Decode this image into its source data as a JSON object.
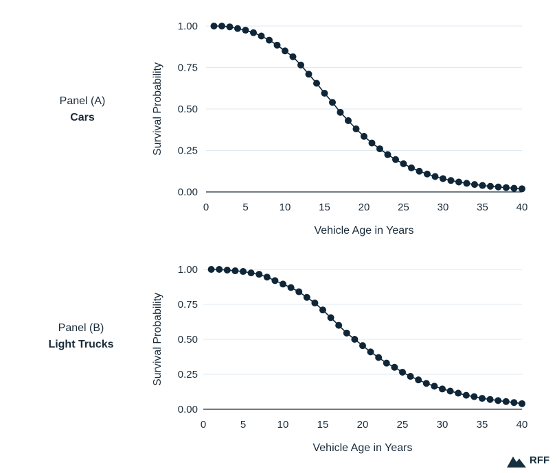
{
  "panels": [
    {
      "label_top": "Panel (A)",
      "label_bottom": "Cars"
    },
    {
      "label_top": "Panel (B)",
      "label_bottom": "Light Trucks"
    }
  ],
  "logo": {
    "text": "RFF",
    "icon": "mountain-icon"
  },
  "colors": {
    "marker": "#0f2638",
    "line": "#0f2638",
    "grid": "#dfe9f0",
    "axis": "#1a2b3a"
  },
  "chart_data": [
    {
      "type": "line",
      "title": "",
      "xlabel": "Vehicle Age in Years",
      "ylabel": "Survival Probability",
      "xlim": [
        0,
        40
      ],
      "ylim": [
        0,
        1
      ],
      "xticks": [
        "0",
        "5",
        "10",
        "15",
        "20",
        "25",
        "30",
        "35",
        "40"
      ],
      "yticks": [
        "0.00",
        "0.25",
        "0.50",
        "0.75",
        "1.00"
      ],
      "grid": true,
      "series": [
        {
          "x": [
            1,
            2,
            3,
            4,
            5,
            6,
            7,
            8,
            9,
            10,
            11,
            12,
            13,
            14,
            15,
            16,
            17,
            18,
            19,
            20,
            21,
            22,
            23,
            24,
            25,
            26,
            27,
            28,
            29,
            30,
            31,
            32,
            33,
            34,
            35,
            36,
            37,
            38,
            39,
            40
          ],
          "y": [
            1.0,
            1.0,
            0.995,
            0.985,
            0.975,
            0.96,
            0.94,
            0.915,
            0.885,
            0.85,
            0.815,
            0.765,
            0.71,
            0.655,
            0.595,
            0.54,
            0.48,
            0.43,
            0.38,
            0.335,
            0.295,
            0.26,
            0.225,
            0.195,
            0.17,
            0.145,
            0.125,
            0.108,
            0.093,
            0.08,
            0.069,
            0.06,
            0.052,
            0.045,
            0.039,
            0.034,
            0.03,
            0.026,
            0.022,
            0.019
          ]
        }
      ]
    },
    {
      "type": "line",
      "title": "",
      "xlabel": "Vehicle Age in Years",
      "ylabel": "Survival Probability",
      "xlim": [
        0,
        40
      ],
      "ylim": [
        0,
        1
      ],
      "xticks": [
        "0",
        "5",
        "10",
        "15",
        "20",
        "25",
        "30",
        "35",
        "40"
      ],
      "yticks": [
        "0.00",
        "0.25",
        "0.50",
        "0.75",
        "1.00"
      ],
      "grid": true,
      "series": [
        {
          "x": [
            1,
            2,
            3,
            4,
            5,
            6,
            7,
            8,
            9,
            10,
            11,
            12,
            13,
            14,
            15,
            16,
            17,
            18,
            19,
            20,
            21,
            22,
            23,
            24,
            25,
            26,
            27,
            28,
            29,
            30,
            31,
            32,
            33,
            34,
            35,
            36,
            37,
            38,
            39,
            40
          ],
          "y": [
            1.0,
            1.0,
            0.995,
            0.99,
            0.985,
            0.975,
            0.965,
            0.945,
            0.92,
            0.895,
            0.87,
            0.84,
            0.8,
            0.76,
            0.71,
            0.655,
            0.6,
            0.545,
            0.5,
            0.455,
            0.41,
            0.37,
            0.33,
            0.3,
            0.265,
            0.235,
            0.21,
            0.185,
            0.165,
            0.145,
            0.13,
            0.115,
            0.1,
            0.09,
            0.078,
            0.07,
            0.062,
            0.055,
            0.048,
            0.04
          ]
        }
      ]
    }
  ]
}
